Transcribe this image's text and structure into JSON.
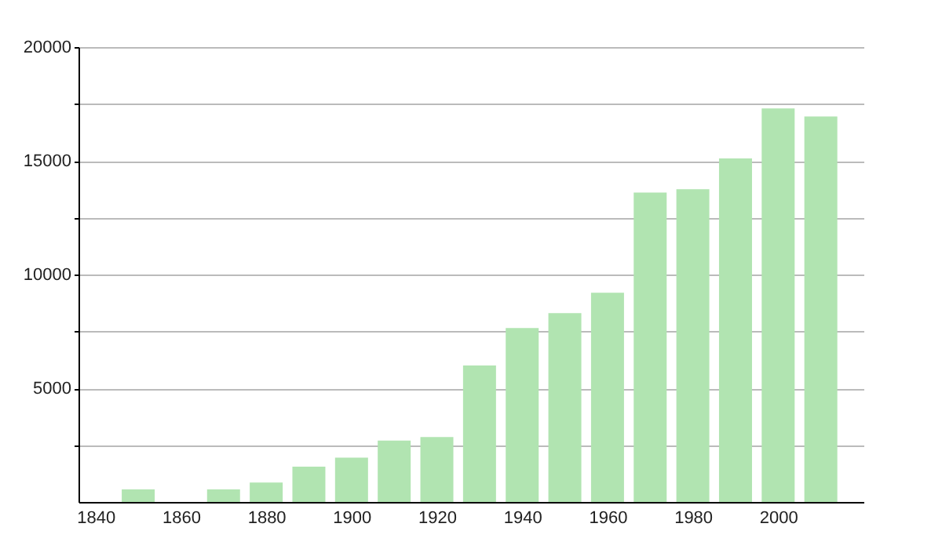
{
  "chart_data": {
    "type": "bar",
    "x": [
      1850,
      1870,
      1880,
      1890,
      1900,
      1910,
      1920,
      1930,
      1940,
      1950,
      1960,
      1970,
      1980,
      1990,
      2000,
      2010
    ],
    "values": [
      550,
      550,
      850,
      1550,
      1950,
      2700,
      2850,
      6000,
      7650,
      8300,
      9200,
      13600,
      13750,
      15100,
      17300,
      16950
    ],
    "color": "#b1e4b1",
    "xlim": [
      1836,
      2020
    ],
    "xticks": [
      1840,
      1860,
      1880,
      1900,
      1920,
      1940,
      1960,
      1980,
      2000
    ],
    "ylim": [
      0,
      20000
    ],
    "yticks": [
      {
        "value": 2500,
        "label": null
      },
      5000,
      {
        "value": 7500,
        "label": null
      },
      10000,
      {
        "value": 12500,
        "label": null
      },
      15000,
      {
        "value": 17500,
        "label": null
      },
      20000
    ],
    "grid": "y"
  }
}
